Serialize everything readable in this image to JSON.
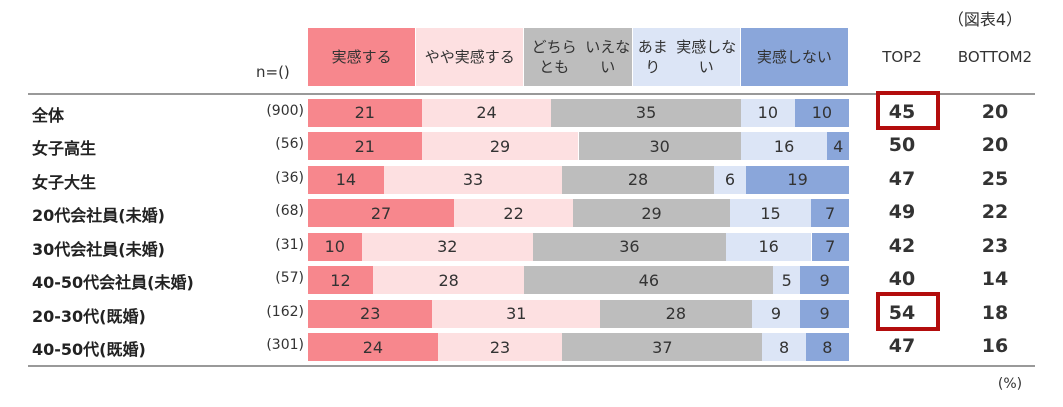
{
  "figure_label": "（図表4）",
  "unit_label": "(%)",
  "n_header": "n=()",
  "colors": {
    "s1": "#f7878d",
    "s2": "#fde0e1",
    "s3": "#bdbdbd",
    "s4": "#dce5f6",
    "s5": "#8aa6da",
    "highlight": "#b30d0d"
  },
  "chart_data": {
    "type": "bar",
    "orientation": "horizontal",
    "stacked": true,
    "xlim": [
      0,
      100
    ],
    "series": [
      {
        "name": "実感する",
        "label_lines": [
          "実感する"
        ],
        "values": [
          21,
          21,
          14,
          27,
          10,
          12,
          23,
          24
        ]
      },
      {
        "name": "やや実感する",
        "label_lines": [
          "やや",
          "実感する"
        ],
        "values": [
          24,
          29,
          33,
          22,
          32,
          28,
          31,
          23
        ]
      },
      {
        "name": "どちらともいえない",
        "label_lines": [
          "どちらとも",
          "いえない"
        ],
        "values": [
          35,
          30,
          28,
          29,
          36,
          46,
          28,
          37
        ]
      },
      {
        "name": "あまり実感しない",
        "label_lines": [
          "あまり",
          "実感しない"
        ],
        "values": [
          10,
          16,
          6,
          15,
          16,
          5,
          9,
          8
        ]
      },
      {
        "name": "実感しない",
        "label_lines": [
          "実感しない"
        ],
        "values": [
          10,
          4,
          19,
          7,
          7,
          9,
          9,
          8
        ]
      }
    ],
    "rows": [
      {
        "label": "全体",
        "n": "(900)"
      },
      {
        "label": "女子高生",
        "n": "(56)"
      },
      {
        "label": "女子大生",
        "n": "(36)"
      },
      {
        "label": "20代会社員(未婚)",
        "n": "(68)"
      },
      {
        "label": "30代会社員(未婚)",
        "n": "(31)"
      },
      {
        "label": "40-50代会社員(未婚)",
        "n": "(57)"
      },
      {
        "label": "20-30代(既婚)",
        "n": "(162)"
      },
      {
        "label": "40-50代(既婚)",
        "n": "(301)"
      }
    ],
    "summary_columns": [
      {
        "name": "TOP2",
        "label_lines": [
          "TOP2"
        ],
        "values": [
          45,
          50,
          47,
          49,
          42,
          40,
          54,
          47
        ]
      },
      {
        "name": "BOTTOM 2",
        "label_lines": [
          "BOTTOM",
          "2"
        ],
        "values": [
          20,
          20,
          25,
          22,
          23,
          14,
          18,
          16
        ]
      }
    ],
    "highlighted": [
      {
        "column": "TOP2",
        "row": "全体"
      },
      {
        "column": "TOP2",
        "row": "20-30代(既婚)"
      }
    ]
  }
}
